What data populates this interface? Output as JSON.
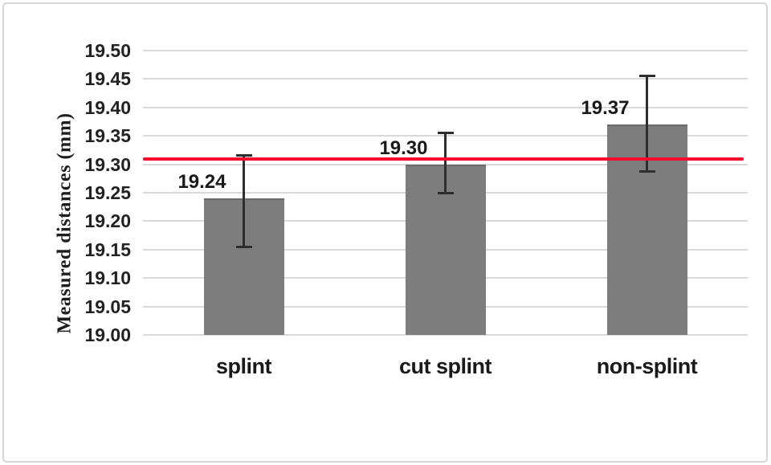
{
  "chart_data": {
    "type": "bar",
    "title": "",
    "ylabel": "Measured distances (mm)",
    "xlabel": "",
    "categories": [
      "splint",
      "cut splint",
      "non-splint"
    ],
    "values": [
      19.24,
      19.3,
      19.37
    ],
    "value_labels": [
      "19.24",
      "19.30",
      "19.37"
    ],
    "error_low": [
      19.155,
      19.25,
      19.287
    ],
    "error_high": [
      19.315,
      19.355,
      19.455
    ],
    "reference_line": {
      "value": 19.31,
      "color": "#f40b2e"
    },
    "ylim": [
      19.0,
      19.5
    ],
    "ytick_step": 0.05,
    "ytick_labels": [
      "19.50",
      "19.45",
      "19.40",
      "19.35",
      "19.30",
      "19.25",
      "19.20",
      "19.15",
      "19.10",
      "19.05",
      "19.00"
    ],
    "grid": true,
    "legend": "none",
    "bar_color": "#7d7d7d",
    "gridline_color": "#d9d9d9",
    "error_bar_color": "#2e2e2e"
  }
}
